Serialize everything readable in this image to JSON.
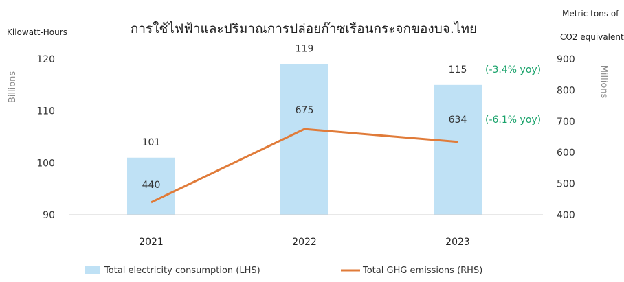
{
  "chart_data": {
    "type": "bar+line",
    "title": "การใช้ไฟฟ้าและปริมาณการปล่อยก๊าซเรือนกระจกของบจ.ไทย",
    "categories": [
      "2021",
      "2022",
      "2023"
    ],
    "left_axis": {
      "unit_label": "Kilowatt-Hours",
      "scale_label": "Billions",
      "ticks": [
        90,
        100,
        110,
        120
      ],
      "ylim": [
        90,
        120
      ]
    },
    "right_axis": {
      "unit_label_line1": "Metric tons of",
      "unit_label_line2": "CO2 equivalent",
      "scale_label": "Millions",
      "ticks": [
        400,
        500,
        600,
        700,
        800,
        900
      ],
      "ylim": [
        400,
        900
      ]
    },
    "series": [
      {
        "name": "Total electricity consumption (LHS)",
        "type": "bar",
        "axis": "left",
        "values": [
          101,
          119,
          115
        ],
        "labels": [
          "101",
          "119",
          "115"
        ],
        "annotations": [
          "",
          "",
          "(-3.4% yoy)"
        ],
        "color": "#bfe1f5"
      },
      {
        "name": "Total GHG emissions (RHS)",
        "type": "line",
        "axis": "right",
        "values": [
          440,
          675,
          634
        ],
        "labels": [
          "440",
          "675",
          "634"
        ],
        "annotations": [
          "",
          "",
          "(-6.1% yoy)"
        ],
        "color": "#e07b39"
      }
    ],
    "legend_position": "bottom",
    "grid": false,
    "annotation_color": "#1aa36b"
  }
}
